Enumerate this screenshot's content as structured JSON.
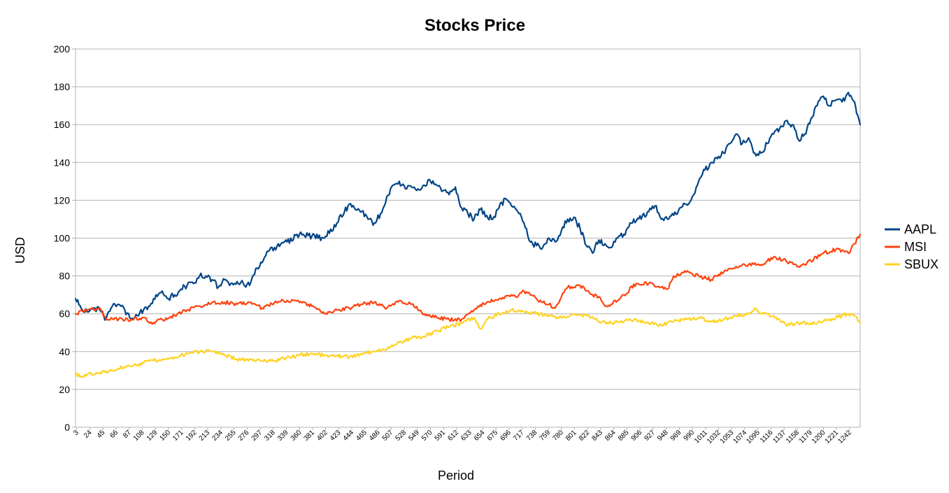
{
  "chart_data": {
    "type": "line",
    "title": "Stocks Price",
    "xlabel": "Period",
    "ylabel": "USD",
    "ylim": [
      0,
      200
    ],
    "yticks": [
      0,
      20,
      40,
      60,
      80,
      100,
      120,
      140,
      160,
      180,
      200
    ],
    "xlim": [
      1,
      1259
    ],
    "xticks": [
      3,
      24,
      45,
      66,
      87,
      108,
      129,
      150,
      171,
      192,
      213,
      234,
      255,
      276,
      297,
      318,
      339,
      360,
      381,
      402,
      423,
      444,
      465,
      486,
      507,
      528,
      549,
      570,
      591,
      612,
      633,
      654,
      675,
      696,
      717,
      738,
      759,
      780,
      801,
      822,
      843,
      864,
      885,
      906,
      927,
      948,
      969,
      990,
      1011,
      1032,
      1053,
      1074,
      1095,
      1116,
      1137,
      1158,
      1179,
      1200,
      1221,
      1242
    ],
    "grid": true,
    "legend_position": "right",
    "series": [
      {
        "name": "AAPL",
        "color": "#004586",
        "x": [
          1,
          10,
          20,
          30,
          40,
          50,
          60,
          70,
          80,
          90,
          100,
          110,
          120,
          130,
          140,
          150,
          160,
          170,
          180,
          190,
          200,
          210,
          220,
          230,
          240,
          250,
          260,
          270,
          280,
          290,
          300,
          310,
          320,
          340,
          360,
          380,
          400,
          420,
          440,
          460,
          470,
          480,
          490,
          500,
          510,
          520,
          530,
          540,
          550,
          560,
          570,
          580,
          590,
          600,
          610,
          620,
          630,
          640,
          650,
          660,
          670,
          680,
          690,
          700,
          710,
          720,
          730,
          740,
          750,
          760,
          770,
          780,
          790,
          800,
          810,
          820,
          830,
          840,
          850,
          860,
          870,
          880,
          890,
          900,
          910,
          920,
          930,
          940,
          950,
          960,
          970,
          980,
          990,
          1000,
          1010,
          1020,
          1030,
          1040,
          1050,
          1060,
          1070,
          1080,
          1090,
          1100,
          1110,
          1120,
          1130,
          1140,
          1150,
          1160,
          1170,
          1180,
          1190,
          1200,
          1210,
          1220,
          1230,
          1240,
          1250,
          1255,
          1259
        ],
        "values": [
          68,
          63,
          61,
          63,
          62,
          57,
          64,
          65,
          62,
          57,
          59,
          62,
          64,
          70,
          72,
          68,
          70,
          73,
          75,
          76,
          80,
          80,
          78,
          74,
          78,
          76,
          77,
          76,
          75,
          84,
          87,
          93,
          95,
          98,
          102,
          101,
          100,
          108,
          118,
          114,
          110,
          108,
          113,
          122,
          128,
          130,
          126,
          127,
          126,
          128,
          130,
          128,
          125,
          123,
          127,
          116,
          113,
          110,
          115,
          112,
          110,
          116,
          121,
          117,
          114,
          108,
          98,
          96,
          95,
          100,
          98,
          104,
          110,
          111,
          105,
          96,
          92,
          99,
          97,
          95,
          100,
          102,
          108,
          109,
          112,
          114,
          117,
          110,
          110,
          112,
          116,
          118,
          122,
          130,
          136,
          140,
          142,
          145,
          150,
          155,
          150,
          153,
          145,
          145,
          150,
          155,
          158,
          162,
          160,
          152,
          155,
          163,
          170,
          175,
          170,
          173,
          172,
          177,
          172,
          165,
          160
        ]
      },
      {
        "name": "MSI",
        "color": "#ff420e",
        "x": [
          1,
          20,
          40,
          50,
          70,
          90,
          110,
          120,
          140,
          160,
          180,
          200,
          220,
          240,
          260,
          280,
          300,
          320,
          340,
          360,
          380,
          400,
          420,
          440,
          460,
          480,
          500,
          520,
          540,
          560,
          580,
          600,
          620,
          640,
          660,
          680,
          700,
          710,
          720,
          730,
          740,
          750,
          760,
          770,
          780,
          790,
          800,
          810,
          820,
          830,
          840,
          850,
          860,
          880,
          900,
          920,
          940,
          950,
          960,
          980,
          1000,
          1020,
          1040,
          1060,
          1080,
          1100,
          1120,
          1140,
          1160,
          1170,
          1180,
          1200,
          1220,
          1240,
          1250,
          1259
        ],
        "values": [
          60,
          62,
          63,
          57,
          57,
          57,
          58,
          55,
          57,
          59,
          62,
          64,
          66,
          66,
          65,
          66,
          63,
          66,
          67,
          66,
          64,
          60,
          62,
          63,
          65,
          66,
          63,
          67,
          65,
          60,
          58,
          57,
          57,
          62,
          66,
          68,
          70,
          69,
          72,
          70,
          68,
          66,
          65,
          63,
          69,
          74,
          74,
          75,
          72,
          70,
          69,
          64,
          65,
          70,
          76,
          76,
          74,
          73,
          80,
          82,
          80,
          78,
          82,
          85,
          86,
          86,
          90,
          88,
          85,
          86,
          88,
          92,
          94,
          92,
          97,
          102
        ]
      },
      {
        "name": "SBUX",
        "color": "#ffd320",
        "x": [
          1,
          10,
          20,
          40,
          60,
          80,
          100,
          120,
          140,
          160,
          180,
          200,
          220,
          240,
          260,
          280,
          300,
          320,
          340,
          360,
          380,
          400,
          420,
          440,
          460,
          480,
          500,
          520,
          540,
          560,
          580,
          600,
          620,
          640,
          650,
          660,
          680,
          700,
          720,
          740,
          760,
          780,
          800,
          820,
          840,
          860,
          880,
          900,
          920,
          940,
          960,
          980,
          1000,
          1020,
          1040,
          1060,
          1080,
          1090,
          1100,
          1120,
          1140,
          1160,
          1180,
          1200,
          1220,
          1240,
          1250,
          1259
        ],
        "values": [
          28,
          27,
          28,
          29,
          30,
          32,
          33,
          35,
          36,
          37,
          39,
          40,
          40,
          38,
          36,
          36,
          35,
          35,
          37,
          38,
          39,
          38,
          38,
          37,
          39,
          40,
          41,
          45,
          47,
          48,
          51,
          53,
          55,
          58,
          52,
          57,
          60,
          62,
          61,
          60,
          59,
          58,
          60,
          59,
          56,
          55,
          56,
          57,
          55,
          54,
          56,
          57,
          58,
          56,
          57,
          59,
          60,
          63,
          60,
          59,
          54,
          55,
          55,
          56,
          58,
          60,
          59,
          55
        ]
      }
    ]
  }
}
